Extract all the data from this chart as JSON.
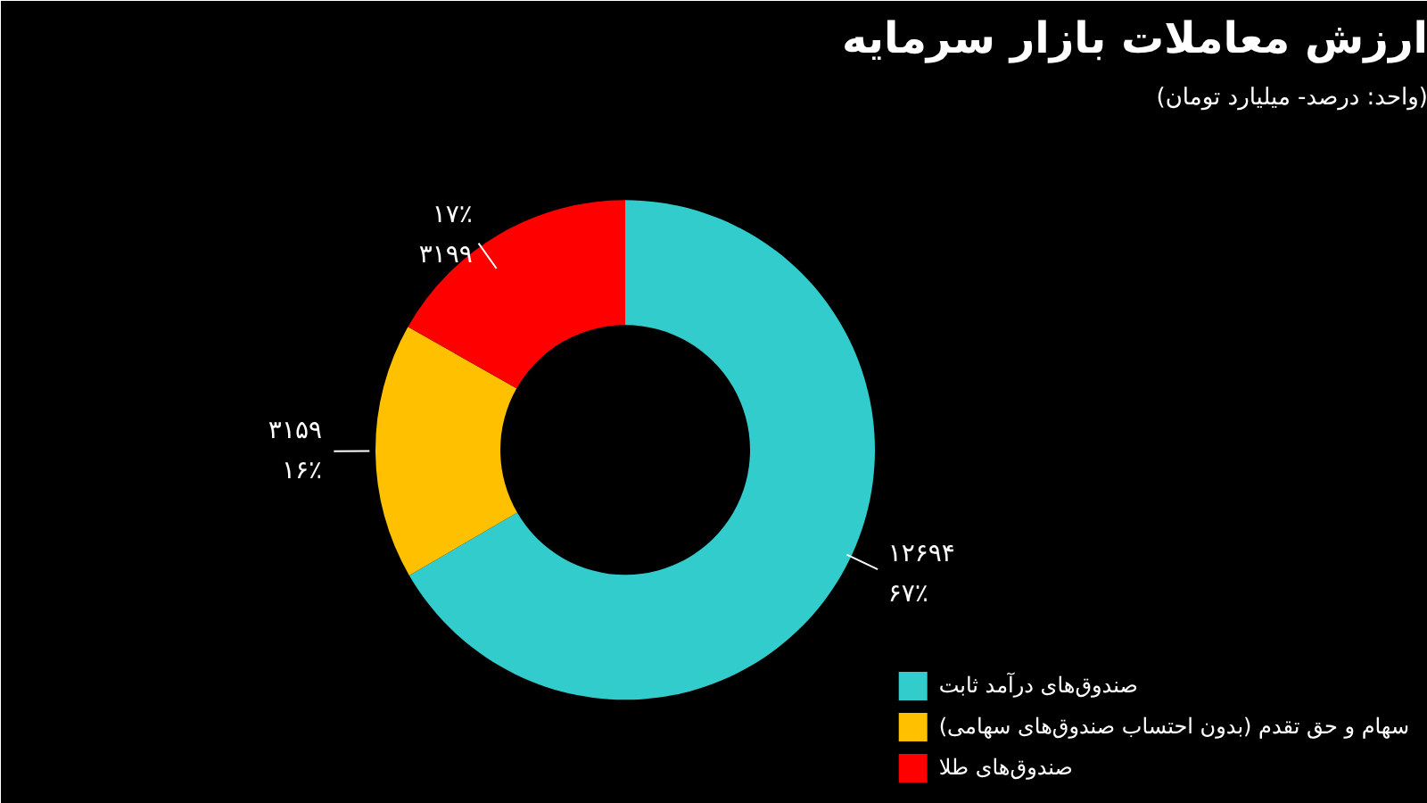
{
  "chart_data": {
    "type": "donut",
    "title": "ارزش معاملات بازار سرمایه",
    "subtitle": "(واحد: درصد- میلیارد تومان)",
    "categories": [
      "صندوق‌های درآمد ثابت",
      "سهام و حق تقدم (بدون احتساب صندوق‌های سهامی)",
      "صندوق‌های طلا"
    ],
    "values": [
      12694,
      3159,
      3199
    ],
    "colors": [
      "#33cccc",
      "#ffc000",
      "#ff0000"
    ],
    "value_labels": [
      "۱۲۶۹۴\n۶۷٪",
      "۳۱۵۹\n۱۶٪",
      "۱۷٪\n۳۱۹۹"
    ],
    "legend": "bottom right"
  }
}
